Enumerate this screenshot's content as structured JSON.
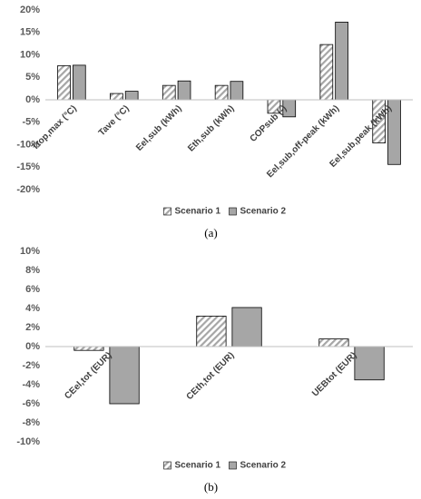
{
  "chart_data": [
    {
      "type": "bar",
      "caption": "(a)",
      "categories": [
        "Ttop,max (°C)",
        "Tave (°C)",
        "Eel,sub (kWh)",
        "Eth,sub (kWh)",
        "COPsub (-)",
        "Eel,sub,off-peak (kWh)",
        "Eel,sub,peak (kWh)"
      ],
      "series": [
        {
          "name": "Scenario 1",
          "color": "#a6a6a6",
          "hatch": true,
          "values": [
            7.6,
            1.4,
            3.2,
            3.2,
            -3.0,
            12.3,
            -9.6
          ]
        },
        {
          "name": "Scenario 2",
          "color": "#a6a6a6",
          "hatch": false,
          "values": [
            7.7,
            1.9,
            4.2,
            4.1,
            -3.8,
            17.3,
            -14.4
          ]
        }
      ],
      "ylim": [
        -20,
        20
      ],
      "yticks": [
        {
          "value": -20,
          "label": "-20%"
        },
        {
          "value": -15,
          "label": "-15%"
        },
        {
          "value": -10,
          "label": "-10%"
        },
        {
          "value": -5,
          "label": "-5%"
        },
        {
          "value": 0,
          "label": "0%"
        },
        {
          "value": 5,
          "label": "5%"
        },
        {
          "value": 10,
          "label": "10%"
        },
        {
          "value": 15,
          "label": "15%"
        },
        {
          "value": 20,
          "label": "20%"
        }
      ],
      "legend": "bottom"
    },
    {
      "type": "bar",
      "caption": "(b)",
      "categories": [
        "CEel,tot (EUR)",
        "CEth,tot (EUR)",
        "UEBtot (EUR)"
      ],
      "series": [
        {
          "name": "Scenario 1",
          "color": "#a6a6a6",
          "hatch": true,
          "values": [
            -0.4,
            3.2,
            0.8
          ]
        },
        {
          "name": "Scenario 2",
          "color": "#a6a6a6",
          "hatch": false,
          "values": [
            -6.0,
            4.1,
            -3.5
          ]
        }
      ],
      "ylim": [
        -10,
        10
      ],
      "yticks": [
        {
          "value": -10,
          "label": "-10%"
        },
        {
          "value": -8,
          "label": "-8%"
        },
        {
          "value": -6,
          "label": "-6%"
        },
        {
          "value": -4,
          "label": "-4%"
        },
        {
          "value": -2,
          "label": "-2%"
        },
        {
          "value": 0,
          "label": "0%"
        },
        {
          "value": 2,
          "label": "2%"
        },
        {
          "value": 4,
          "label": "4%"
        },
        {
          "value": 6,
          "label": "6%"
        },
        {
          "value": 8,
          "label": "8%"
        },
        {
          "value": 10,
          "label": "10%"
        }
      ],
      "legend": "bottom"
    }
  ]
}
